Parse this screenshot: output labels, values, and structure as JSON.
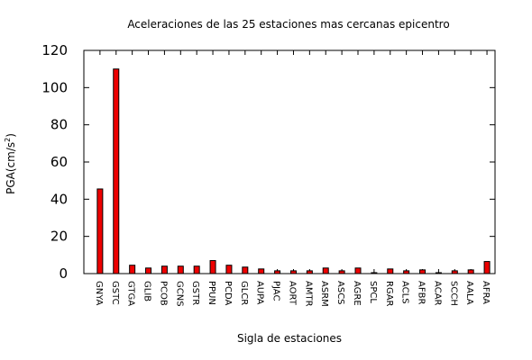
{
  "chart_data": {
    "type": "bar",
    "title": "Aceleraciones de las 25 estaciones mas cercanas epicentro",
    "xlabel": "Sigla de estaciones",
    "ylabel": "PGA(cm/s",
    "ylabel_sup": "2",
    "ylabel_end": ")",
    "ylim": [
      0,
      120
    ],
    "yticks": [
      0,
      20,
      40,
      60,
      80,
      100,
      120
    ],
    "grid": false,
    "bar_color": "#ee0000",
    "categories": [
      "GNYA",
      "GSTC",
      "GTGA",
      "GLIB",
      "PCOB",
      "GCNS",
      "GSTR",
      "PPUN",
      "PCDA",
      "GLCR",
      "AUPA",
      "PJAC",
      "AORT",
      "AMTR",
      "ASRM",
      "ASCS",
      "AGRE",
      "SPCL",
      "RGAR",
      "ACLS",
      "AFBR",
      "ACAR",
      "SCCH",
      "AALA",
      "AFRA"
    ],
    "values": [
      45.5,
      110,
      4.5,
      3,
      4,
      4,
      4,
      7,
      4.5,
      3.5,
      2.5,
      1.5,
      1.5,
      1.5,
      3,
      1.5,
      3,
      0.5,
      2.5,
      1.5,
      2,
      0.5,
      1.5,
      2,
      6.5
    ]
  }
}
